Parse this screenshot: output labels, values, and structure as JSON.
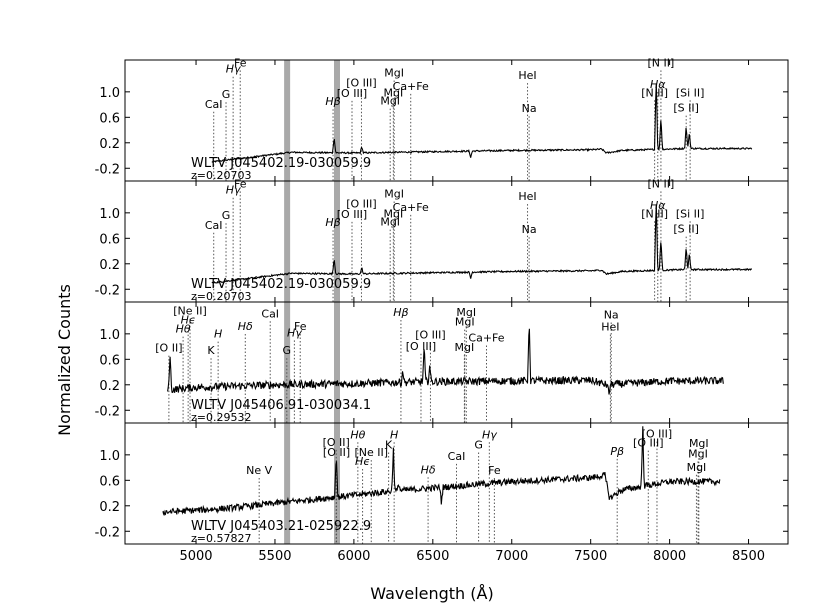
{
  "chart_data": {
    "type": "line",
    "xlabel": "Wavelength (Å)",
    "ylabel": "Normalized Counts",
    "xlim": [
      4550,
      8750
    ],
    "x_ticks": [
      "5000",
      "5500",
      "6000",
      "6500",
      "7000",
      "7500",
      "8000",
      "8500"
    ],
    "y_ticks": [
      "-0.2",
      "0.2",
      "0.6",
      "1.0"
    ],
    "ylim": [
      -0.4,
      1.5
    ],
    "shaded_bands": [
      5577,
      5893
    ],
    "line_color": "#000000",
    "band_color": "#a9a9a9",
    "marker_color": "#555555",
    "panels": [
      {
        "object": "WLTV J045402.19-030059.9",
        "redshift": "z=0.20703",
        "x_range": [
          5100,
          8520
        ],
        "series": {
          "name": "",
          "baseline": [
            [
              5100,
              -0.1
            ],
            [
              5600,
              0.05
            ],
            [
              6000,
              0.04
            ],
            [
              6500,
              0.06
            ],
            [
              7000,
              0.08
            ],
            [
              7500,
              0.09
            ],
            [
              7570,
              0.1
            ],
            [
              7600,
              0.04
            ],
            [
              7700,
              0.08
            ],
            [
              8100,
              0.11
            ],
            [
              8500,
              0.11
            ]
          ],
          "noise": 0.012,
          "features": [
            [
              5875,
              0.25
            ],
            [
              6050,
              0.1
            ],
            [
              6740,
              -0.1
            ],
            [
              7915,
              1.15
            ],
            [
              7945,
              0.5
            ],
            [
              8105,
              0.35
            ],
            [
              8125,
              0.25
            ]
          ]
        },
        "lines": [
          {
            "label": "CaI",
            "x": 5112,
            "y": 0.75,
            "math": false
          },
          {
            "label": "G",
            "x": 5190,
            "y": 0.9,
            "math": false
          },
          {
            "label": "Hγ",
            "x": 5235,
            "y": 1.3,
            "math": true
          },
          {
            "label": "Fe",
            "x": 5280,
            "y": 1.4,
            "math": false
          },
          {
            "label": "Hβ",
            "x": 5868,
            "y": 0.79,
            "math": true
          },
          {
            "label": "[O III]",
            "x": 5988,
            "y": 0.92,
            "math": false
          },
          {
            "label": "[O III]",
            "x": 6048,
            "y": 1.08,
            "math": false
          },
          {
            "label": "MgI",
            "x": 6230,
            "y": 0.8,
            "math": false
          },
          {
            "label": "MgI",
            "x": 6250,
            "y": 0.93,
            "math": false
          },
          {
            "label": "MgI",
            "x": 6255,
            "y": 1.24,
            "math": false
          },
          {
            "label": "Ca+Fe",
            "x": 6360,
            "y": 1.03,
            "math": false
          },
          {
            "label": "Na",
            "x": 7110,
            "y": 0.68,
            "math": false
          },
          {
            "label": "HeI",
            "x": 7100,
            "y": 1.2,
            "math": false
          },
          {
            "label": "[S II]",
            "x": 8105,
            "y": 0.69,
            "math": false
          },
          {
            "label": "[N II]",
            "x": 7905,
            "y": 0.93,
            "math": false
          },
          {
            "label": "Hα",
            "x": 7925,
            "y": 1.06,
            "math": true
          },
          {
            "label": "[N II]",
            "x": 7945,
            "y": 1.4,
            "math": false
          },
          {
            "label": "[Si II]",
            "x": 8130,
            "y": 0.93,
            "math": false
          }
        ]
      },
      {
        "object": "WLTV J045402.19-030059.9",
        "redshift": "z=0.20703",
        "x_range": [
          5100,
          8520
        ],
        "series": {
          "name": "",
          "baseline": [
            [
              5100,
              -0.1
            ],
            [
              5600,
              0.05
            ],
            [
              6000,
              0.04
            ],
            [
              6500,
              0.06
            ],
            [
              7000,
              0.08
            ],
            [
              7500,
              0.09
            ],
            [
              7570,
              0.1
            ],
            [
              7600,
              0.04
            ],
            [
              7700,
              0.08
            ],
            [
              8100,
              0.11
            ],
            [
              8500,
              0.11
            ]
          ],
          "noise": 0.012,
          "features": [
            [
              5875,
              0.25
            ],
            [
              6050,
              0.1
            ],
            [
              6740,
              -0.1
            ],
            [
              7915,
              1.15
            ],
            [
              7945,
              0.5
            ],
            [
              8105,
              0.35
            ],
            [
              8125,
              0.25
            ]
          ]
        },
        "lines": [
          {
            "label": "CaI",
            "x": 5112,
            "y": 0.75,
            "math": false
          },
          {
            "label": "G",
            "x": 5190,
            "y": 0.9,
            "math": false
          },
          {
            "label": "Hγ",
            "x": 5235,
            "y": 1.3,
            "math": true
          },
          {
            "label": "Fe",
            "x": 5280,
            "y": 1.4,
            "math": false
          },
          {
            "label": "Hβ",
            "x": 5868,
            "y": 0.79,
            "math": true
          },
          {
            "label": "[O III]",
            "x": 5988,
            "y": 0.92,
            "math": false
          },
          {
            "label": "[O III]",
            "x": 6048,
            "y": 1.08,
            "math": false
          },
          {
            "label": "MgI",
            "x": 6230,
            "y": 0.8,
            "math": false
          },
          {
            "label": "MgI",
            "x": 6250,
            "y": 0.93,
            "math": false
          },
          {
            "label": "MgI",
            "x": 6255,
            "y": 1.24,
            "math": false
          },
          {
            "label": "Ca+Fe",
            "x": 6360,
            "y": 1.03,
            "math": false
          },
          {
            "label": "Na",
            "x": 7110,
            "y": 0.68,
            "math": false
          },
          {
            "label": "HeI",
            "x": 7100,
            "y": 1.2,
            "math": false
          },
          {
            "label": "[S II]",
            "x": 8105,
            "y": 0.69,
            "math": false
          },
          {
            "label": "[N II]",
            "x": 7905,
            "y": 0.93,
            "math": false
          },
          {
            "label": "Hα",
            "x": 7925,
            "y": 1.06,
            "math": true
          },
          {
            "label": "[N II]",
            "x": 7945,
            "y": 1.4,
            "math": false
          },
          {
            "label": "[Si II]",
            "x": 8130,
            "y": 0.93,
            "math": false
          }
        ]
      },
      {
        "object": "WLTV J045406.91-030034.1",
        "redshift": "z=0.29532",
        "x_range": [
          4820,
          8340
        ],
        "series": {
          "name": "",
          "baseline": [
            [
              4820,
              0.12
            ],
            [
              5000,
              0.16
            ],
            [
              5500,
              0.2
            ],
            [
              6000,
              0.22
            ],
            [
              6500,
              0.25
            ],
            [
              7000,
              0.26
            ],
            [
              7500,
              0.27
            ],
            [
              7600,
              0.2
            ],
            [
              8000,
              0.26
            ],
            [
              8340,
              0.26
            ]
          ],
          "noise": 0.06,
          "features": [
            [
              4835,
              0.55
            ],
            [
              6310,
              0.2
            ],
            [
              6445,
              0.55
            ],
            [
              6480,
              0.25
            ],
            [
              7110,
              0.95
            ],
            [
              7615,
              -0.15
            ]
          ]
        },
        "lines": [
          {
            "label": "[O II]",
            "x": 4828,
            "y": 0.72,
            "math": false
          },
          {
            "label": "Hθ",
            "x": 4918,
            "y": 1.02,
            "math": true
          },
          {
            "label": "Hϵ",
            "x": 4950,
            "y": 1.16,
            "math": true
          },
          {
            "label": "[Ne II]",
            "x": 4962,
            "y": 1.3,
            "math": false
          },
          {
            "label": "K",
            "x": 5095,
            "y": 0.68,
            "math": false
          },
          {
            "label": "H",
            "x": 5140,
            "y": 0.94,
            "math": true
          },
          {
            "label": "Hδ",
            "x": 5312,
            "y": 1.06,
            "math": true
          },
          {
            "label": "CaI",
            "x": 5470,
            "y": 1.26,
            "math": false
          },
          {
            "label": "G",
            "x": 5575,
            "y": 0.68,
            "math": false
          },
          {
            "label": "Hγ",
            "x": 5623,
            "y": 0.96,
            "math": true
          },
          {
            "label": "Fe",
            "x": 5660,
            "y": 1.06,
            "math": false
          },
          {
            "label": "Hβ",
            "x": 6298,
            "y": 1.28,
            "math": true
          },
          {
            "label": "[O III]",
            "x": 6425,
            "y": 0.75,
            "math": false
          },
          {
            "label": "[O III]",
            "x": 6485,
            "y": 0.93,
            "math": false
          },
          {
            "label": "MgI",
            "x": 6700,
            "y": 0.73,
            "math": false
          },
          {
            "label": "MgI",
            "x": 6702,
            "y": 1.13,
            "math": false
          },
          {
            "label": "MgI",
            "x": 6712,
            "y": 1.28,
            "math": false
          },
          {
            "label": "Ca+Fe",
            "x": 6840,
            "y": 0.88,
            "math": false
          },
          {
            "label": "HeI",
            "x": 7625,
            "y": 1.05,
            "math": false
          },
          {
            "label": "Na",
            "x": 7630,
            "y": 1.24,
            "math": false
          }
        ]
      },
      {
        "object": "WLTV J045403.21-025922.9",
        "redshift": "z=0.57827",
        "x_range": [
          4790,
          8320
        ],
        "series": {
          "name": "",
          "baseline": [
            [
              4790,
              0.1
            ],
            [
              5200,
              0.16
            ],
            [
              5500,
              0.24
            ],
            [
              5900,
              0.34
            ],
            [
              6200,
              0.42
            ],
            [
              6500,
              0.48
            ],
            [
              7000,
              0.58
            ],
            [
              7500,
              0.64
            ],
            [
              7590,
              0.68
            ],
            [
              7620,
              0.32
            ],
            [
              7700,
              0.45
            ],
            [
              8000,
              0.58
            ],
            [
              8300,
              0.58
            ]
          ],
          "noise": 0.05,
          "features": [
            [
              5888,
              0.7
            ],
            [
              6250,
              0.65
            ],
            [
              6285,
              0.12
            ],
            [
              6555,
              -0.25
            ],
            [
              7830,
              0.9
            ]
          ]
        },
        "lines": [
          {
            "label": "Ne V",
            "x": 5400,
            "y": 0.7,
            "math": false
          },
          {
            "label": "[O II]",
            "x": 5888,
            "y": 1.14,
            "math": false
          },
          {
            "label": "[O II]",
            "x": 5890,
            "y": 0.98,
            "math": false
          },
          {
            "label": "Hθ",
            "x": 6025,
            "y": 1.26,
            "math": true
          },
          {
            "label": "[Ne II]",
            "x": 6110,
            "y": 0.98,
            "math": false
          },
          {
            "label": "Hϵ",
            "x": 6055,
            "y": 0.84,
            "math": true
          },
          {
            "label": "K",
            "x": 6220,
            "y": 1.1,
            "math": false
          },
          {
            "label": "H",
            "x": 6255,
            "y": 1.26,
            "math": true
          },
          {
            "label": "Hδ",
            "x": 6470,
            "y": 0.71,
            "math": true
          },
          {
            "label": "CaI",
            "x": 6650,
            "y": 0.92,
            "math": false
          },
          {
            "label": "G",
            "x": 6790,
            "y": 1.1,
            "math": false
          },
          {
            "label": "Hγ",
            "x": 6858,
            "y": 1.26,
            "math": true
          },
          {
            "label": "Fe",
            "x": 6890,
            "y": 0.7,
            "math": false
          },
          {
            "label": "Pβ",
            "x": 7668,
            "y": 1.0,
            "math": true
          },
          {
            "label": "[O III]",
            "x": 7865,
            "y": 1.13,
            "math": false
          },
          {
            "label": "[O III]",
            "x": 7920,
            "y": 1.27,
            "math": false
          },
          {
            "label": "MgI",
            "x": 8170,
            "y": 0.75,
            "math": false
          },
          {
            "label": "MgI",
            "x": 8180,
            "y": 0.96,
            "math": false
          },
          {
            "label": "MgI",
            "x": 8185,
            "y": 1.12,
            "math": false
          }
        ]
      }
    ]
  }
}
